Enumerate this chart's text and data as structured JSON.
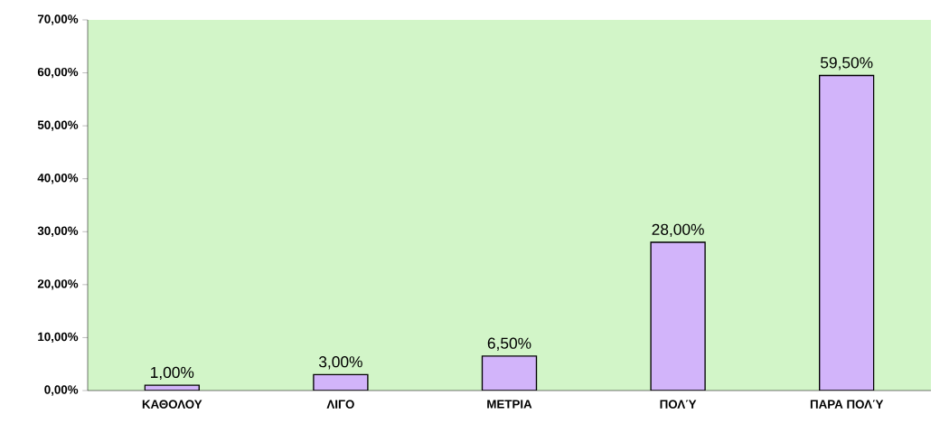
{
  "chart_data": {
    "type": "bar",
    "categories": [
      "ΚΑΘΟΛΟΥ",
      "ΛΙΓΟ",
      "ΜΕΤΡΙΑ",
      "ΠΟΛΎ",
      "ΠΑΡΑ ΠΟΛΎ"
    ],
    "values": [
      1.0,
      3.0,
      6.5,
      28.0,
      59.5
    ],
    "value_labels": [
      "1,00%",
      "3,00%",
      "6,50%",
      "28,00%",
      "59,50%"
    ],
    "color": "#d2b4fa",
    "ylim": [
      0,
      70
    ],
    "yticks": [
      {
        "value": 0,
        "label": "0,00%"
      },
      {
        "value": 10,
        "label": "10,00%"
      },
      {
        "value": 20,
        "label": "20,00%"
      },
      {
        "value": 30,
        "label": "30,00%"
      },
      {
        "value": 40,
        "label": "40,00%"
      },
      {
        "value": 50,
        "label": "50,00%"
      },
      {
        "value": 60,
        "label": "60,00%"
      },
      {
        "value": 70,
        "label": "70,00%"
      }
    ],
    "grid": false
  }
}
